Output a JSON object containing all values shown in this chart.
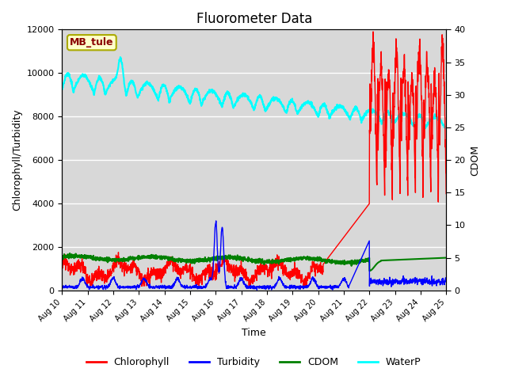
{
  "title": "Fluorometer Data",
  "xlabel": "Time",
  "ylabel_left": "Chlorophyll/Turbidity",
  "ylabel_right": "CDOM",
  "ylim_left": [
    0,
    12000
  ],
  "ylim_right": [
    0,
    40
  ],
  "background_color": "#d8d8d8",
  "legend_label": "MB_tule",
  "legend_box_color": "#ffffcc",
  "legend_box_edge": "#aaaa00",
  "tick_labels": [
    "Aug 10",
    "Aug 11",
    "Aug 12",
    "Aug 13",
    "Aug 14",
    "Aug 15",
    "Aug 16",
    "Aug 17",
    "Aug 18",
    "Aug 19",
    "Aug 20",
    "Aug 21",
    "Aug 22",
    "Aug 23",
    "Aug 24",
    "Aug 25"
  ]
}
